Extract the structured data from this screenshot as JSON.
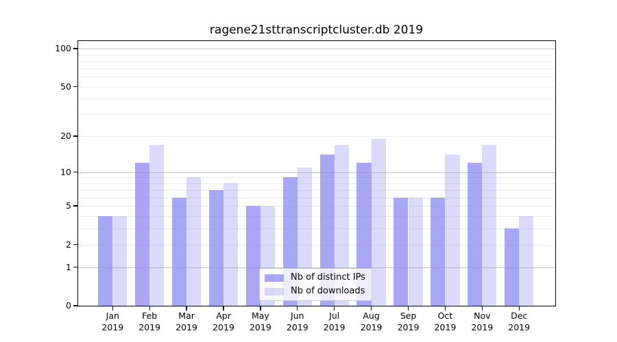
{
  "chart_data": {
    "type": "bar",
    "title": "ragene21sttranscriptcluster.db 2019",
    "categories": [
      "Jan",
      "Feb",
      "Mar",
      "Apr",
      "May",
      "Jun",
      "Jul",
      "Aug",
      "Sep",
      "Oct",
      "Nov",
      "Dec"
    ],
    "category_year": "2019",
    "series": [
      {
        "name": "Nb of distinct IPs",
        "color": "rgba(137,137,240,0.75)",
        "values": [
          4,
          12,
          6,
          7,
          5,
          9,
          14,
          12,
          6,
          6,
          12,
          3
        ]
      },
      {
        "name": "Nb of downloads",
        "color": "rgba(137,137,240,0.31)",
        "values": [
          4,
          17,
          9,
          8,
          5,
          11,
          17,
          19,
          6,
          14,
          17,
          4
        ]
      }
    ],
    "yscale": "log1p",
    "ylim": [
      0,
      115
    ],
    "yticks": [
      0,
      1,
      2,
      5,
      10,
      20,
      50,
      100
    ],
    "major_gridlines": [
      1,
      10,
      100
    ],
    "minor_gridlines": [
      2,
      3,
      4,
      5,
      6,
      7,
      8,
      9,
      20,
      30,
      40,
      50,
      60,
      70,
      80,
      90
    ],
    "grid": true,
    "legend_position": "lower-center",
    "colors": {
      "major_grid": "#c3c3c3",
      "minor_grid": "#ececec",
      "spine": "#000000",
      "text": "#000000"
    }
  }
}
